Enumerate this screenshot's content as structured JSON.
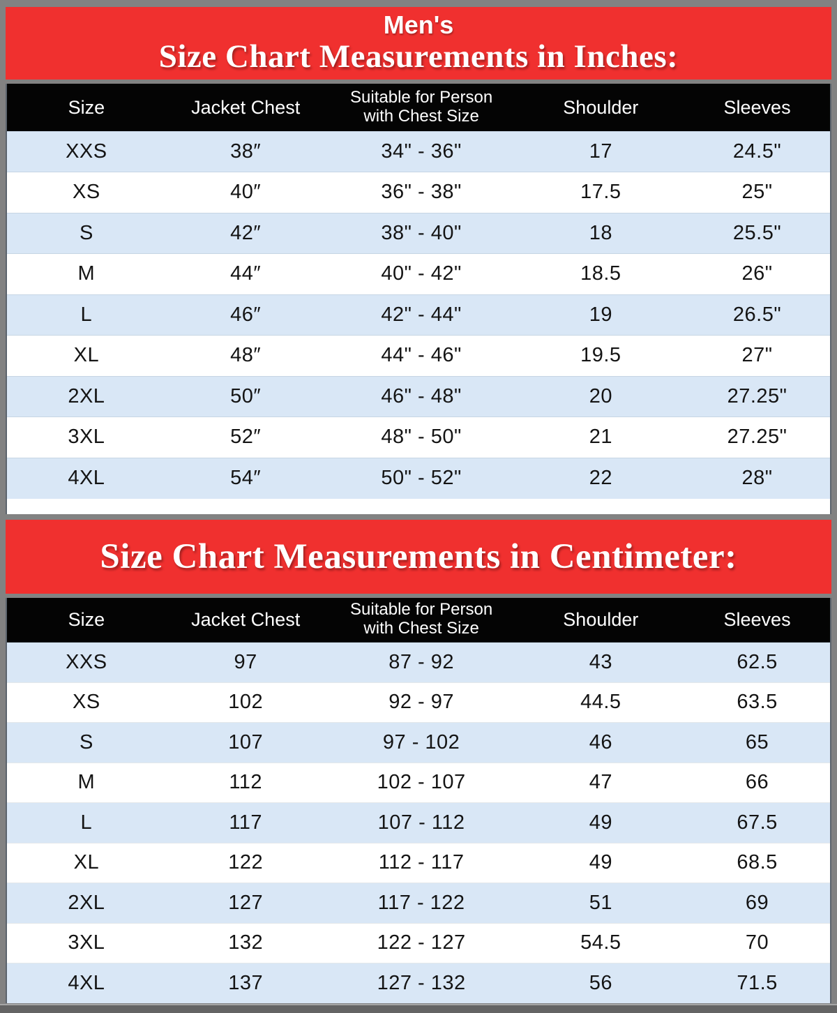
{
  "banners": {
    "inches": {
      "super_title": "Men's",
      "title": "Size Chart Measurements in Inches:"
    },
    "centimeter": {
      "title": "Size Chart Measurements in Centimeter:"
    }
  },
  "chart_data": [
    {
      "type": "table",
      "title": "Size Chart Measurements in Inches:",
      "super_title": "Men's",
      "unit": "inches",
      "columns": [
        "Size",
        "Jacket Chest",
        "Suitable for Person\nwith Chest Size",
        "Shoulder",
        "Sleeves"
      ],
      "rows": [
        [
          "XXS",
          "38″",
          "34\" - 36\"",
          "17",
          "24.5\""
        ],
        [
          "XS",
          "40″",
          "36\" - 38\"",
          "17.5",
          "25\""
        ],
        [
          "S",
          "42″",
          "38\" - 40\"",
          "18",
          "25.5\""
        ],
        [
          "M",
          "44″",
          "40\" - 42\"",
          "18.5",
          "26\""
        ],
        [
          "L",
          "46″",
          "42\" - 44\"",
          "19",
          "26.5\""
        ],
        [
          "XL",
          "48″",
          "44\" - 46\"",
          "19.5",
          "27\""
        ],
        [
          "2XL",
          "50″",
          "46\" - 48\"",
          "20",
          "27.25\""
        ],
        [
          "3XL",
          "52″",
          "48\" - 50\"",
          "21",
          "27.25\""
        ],
        [
          "4XL",
          "54″",
          "50\" - 52\"",
          "22",
          "28\""
        ]
      ]
    },
    {
      "type": "table",
      "title": "Size Chart Measurements in Centimeter:",
      "unit": "centimeter",
      "columns": [
        "Size",
        "Jacket Chest",
        "Suitable for Person\nwith Chest Size",
        "Shoulder",
        "Sleeves"
      ],
      "rows": [
        [
          "XXS",
          "97",
          "87 - 92",
          "43",
          "62.5"
        ],
        [
          "XS",
          "102",
          "92 - 97",
          "44.5",
          "63.5"
        ],
        [
          "S",
          "107",
          "97 - 102",
          "46",
          "65"
        ],
        [
          "M",
          "112",
          "102 - 107",
          "47",
          "66"
        ],
        [
          "L",
          "117",
          "107 - 112",
          "49",
          "67.5"
        ],
        [
          "XL",
          "122",
          "112 - 117",
          "49",
          "68.5"
        ],
        [
          "2XL",
          "127",
          "117 - 122",
          "51",
          "69"
        ],
        [
          "3XL",
          "132",
          "122 - 127",
          "54.5",
          "70"
        ],
        [
          "4XL",
          "137",
          "127 - 132",
          "56",
          "71.5"
        ]
      ]
    }
  ],
  "colors": {
    "banner_red": "#f0302f",
    "header_black": "#040404",
    "row_blue": "#d9e7f6",
    "row_white": "#ffffff",
    "frame_gray": "#828282",
    "bottom_bar_gray": "#646464",
    "text_white": "#ffffff",
    "text_black": "#141414"
  }
}
